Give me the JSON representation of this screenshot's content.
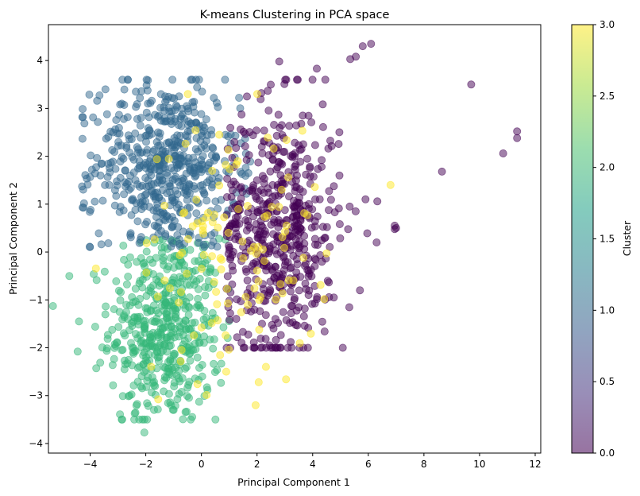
{
  "chart_data": {
    "type": "scatter",
    "title": "K-means Clustering in PCA space",
    "xlabel": "Principal Component 1",
    "ylabel": "Principal Component 2",
    "xlim": [
      -5.5,
      12.2
    ],
    "ylim": [
      -4.2,
      4.75
    ],
    "xticks": [
      -4,
      -2,
      0,
      2,
      4,
      6,
      8,
      10,
      12
    ],
    "yticks": [
      -4,
      -3,
      -2,
      -1,
      0,
      1,
      2,
      3,
      4
    ],
    "grid": false,
    "colorbar": {
      "label": "Cluster",
      "range": [
        0,
        3
      ],
      "ticks": [
        0.0,
        0.5,
        1.0,
        1.5,
        2.0,
        2.5,
        3.0
      ],
      "tick_labels": [
        "0.0",
        "0.5",
        "1.0",
        "1.5",
        "2.0",
        "2.5",
        "3.0"
      ],
      "colormap": "viridis"
    },
    "series": [
      {
        "cluster": 0,
        "color": "#440154",
        "center": [
          2.8,
          0.5
        ],
        "spread": [
          1.1,
          1.3
        ],
        "count": 550
      },
      {
        "cluster": 1,
        "color": "#31688e",
        "center": [
          -1.3,
          1.8
        ],
        "spread": [
          1.3,
          0.9
        ],
        "count": 550
      },
      {
        "cluster": 2,
        "color": "#35b779",
        "center": [
          -1.3,
          -1.6
        ],
        "spread": [
          1.0,
          1.0
        ],
        "count": 500
      },
      {
        "cluster": 3,
        "color": "#fde725",
        "center": [
          1.0,
          0.0
        ],
        "spread": [
          1.6,
          1.4
        ],
        "count": 120
      }
    ],
    "outliers": [
      {
        "x": 9.7,
        "y": 3.5,
        "cluster": 0
      },
      {
        "x": 11.35,
        "y": 2.52,
        "cluster": 0
      },
      {
        "x": 11.35,
        "y": 2.38,
        "cluster": 0
      },
      {
        "x": 10.85,
        "y": 2.06,
        "cluster": 0
      },
      {
        "x": 8.65,
        "y": 1.68,
        "cluster": 0
      },
      {
        "x": 6.95,
        "y": 0.55,
        "cluster": 0
      },
      {
        "x": 6.95,
        "y": 0.48,
        "cluster": 0
      },
      {
        "x": 6.8,
        "y": 1.4,
        "cluster": 3
      },
      {
        "x": 6.1,
        "y": 4.35,
        "cluster": 0
      },
      {
        "x": 5.8,
        "y": 4.3,
        "cluster": 0
      },
      {
        "x": 5.35,
        "y": 4.03,
        "cluster": 0
      },
      {
        "x": 5.55,
        "y": 4.08,
        "cluster": 0
      },
      {
        "x": 2.8,
        "y": 3.98,
        "cluster": 0
      },
      {
        "x": 4.15,
        "y": 3.83,
        "cluster": 0
      },
      {
        "x": -4.75,
        "y": -0.5,
        "cluster": 2
      },
      {
        "x": -4.4,
        "y": -1.45,
        "cluster": 2
      },
      {
        "x": -4.45,
        "y": -2.08,
        "cluster": 2
      },
      {
        "x": -2.05,
        "y": -3.77,
        "cluster": 2
      },
      {
        "x": -2.4,
        "y": -3.37,
        "cluster": 2
      },
      {
        "x": 2.45,
        "y": -1.95,
        "cluster": 0
      },
      {
        "x": 7.0,
        "y": 0.5,
        "cluster": 0
      },
      {
        "x": 5.9,
        "y": 1.1,
        "cluster": 0
      },
      {
        "x": 6.3,
        "y": 0.2,
        "cluster": 0
      },
      {
        "x": 5.7,
        "y": -0.8,
        "cluster": 0
      }
    ]
  }
}
